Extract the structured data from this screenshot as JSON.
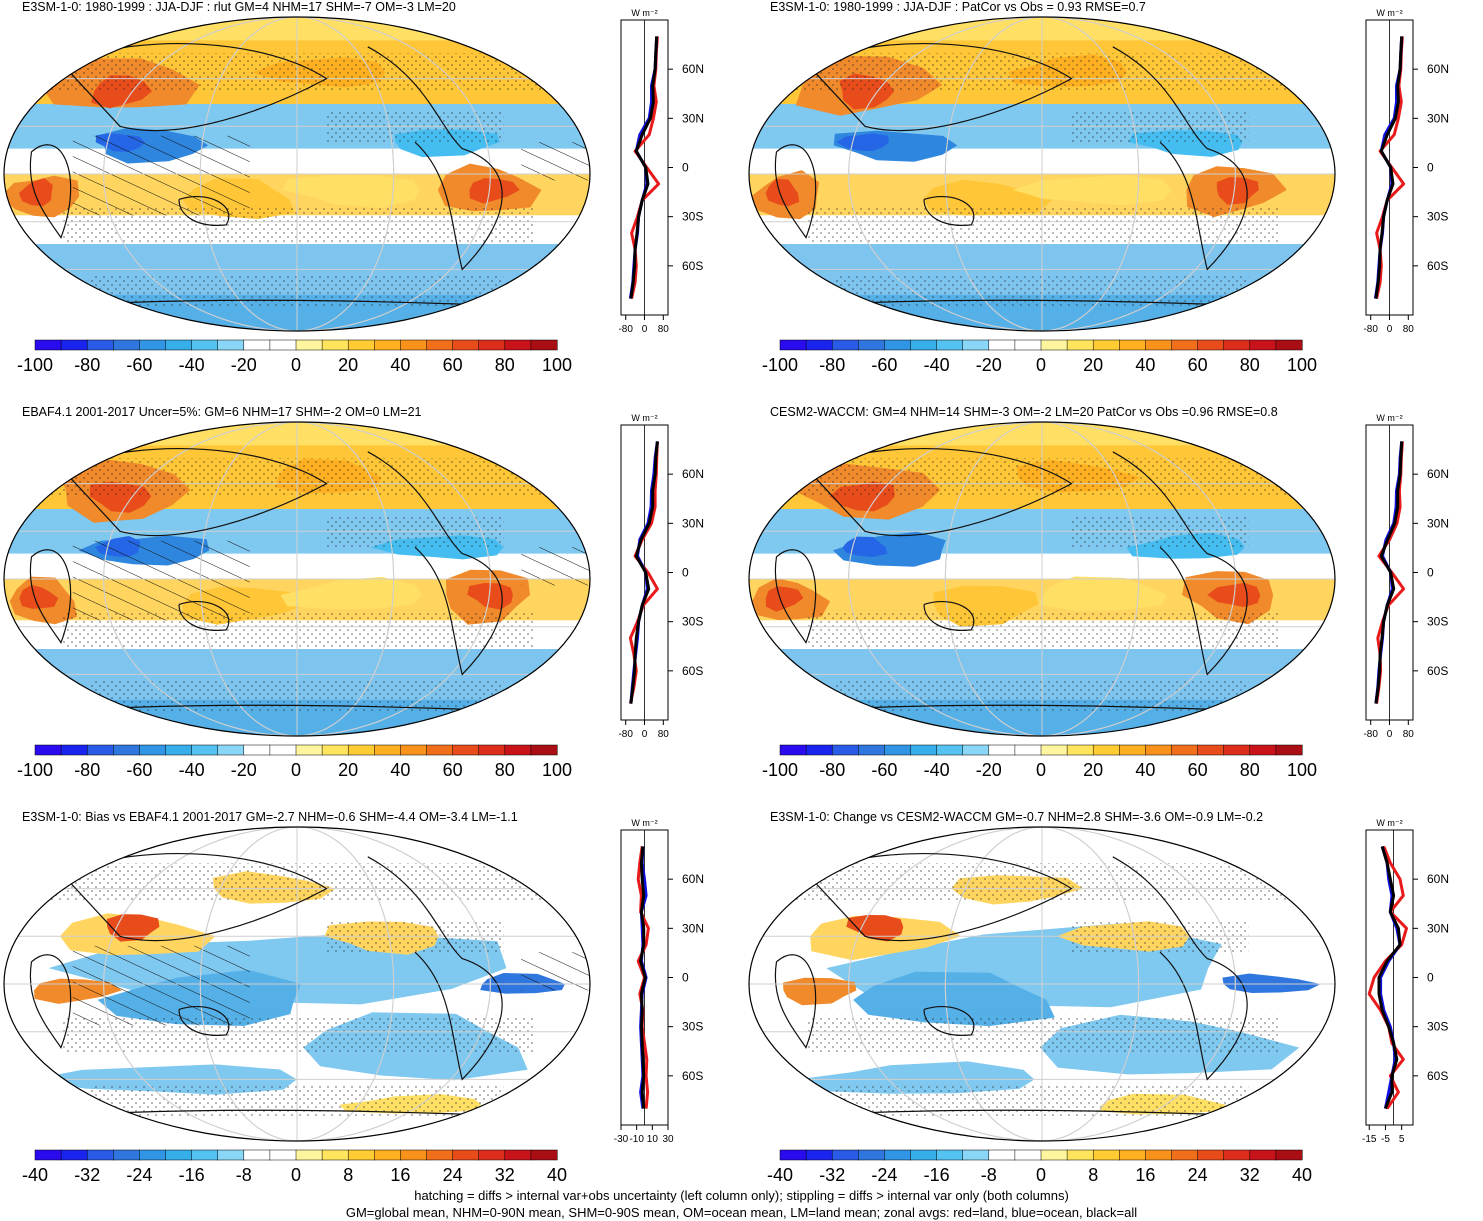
{
  "footer": {
    "line1": "hatching = diffs > internal var+obs uncertainty (left column only); stippling = diffs > internal var only (both columns)",
    "line2": "GM=global mean, NHM=0-90N mean, SHM=0-90S mean, OM=ocean mean, LM=land mean; zonal avgs: red=land, blue=ocean, black=all"
  },
  "chart_data": [
    {
      "type": "heatmap",
      "title": "E3SM-1-0: 1980-1999 : JJA-DJF : rlut GM=4 NHM=17 SHM=-7 OM=-3 LM=20",
      "colorbar": {
        "ticks": [
          "-100",
          "-80",
          "-60",
          "-40",
          "-20",
          "0",
          "20",
          "40",
          "60",
          "80",
          "100"
        ],
        "range": [
          -100,
          100
        ]
      },
      "zonal": {
        "units": "W m⁻²",
        "xticks": [
          "-80",
          "0",
          "80"
        ],
        "xlim": [
          -100,
          100
        ],
        "yticks": [
          "60N",
          "30N",
          "0",
          "30S",
          "60S"
        ],
        "lat": [
          80,
          70,
          60,
          50,
          40,
          30,
          20,
          10,
          0,
          -10,
          -20,
          -30,
          -40,
          -50,
          -60,
          -70,
          -80
        ],
        "land": [
          55,
          50,
          48,
          40,
          50,
          38,
          20,
          -40,
          10,
          60,
          -10,
          -30,
          -55,
          -40,
          -35,
          -40,
          -55
        ],
        "ocean": [
          52,
          48,
          45,
          30,
          30,
          20,
          -20,
          -35,
          5,
          10,
          -10,
          -25,
          -30,
          -40,
          -45,
          -50,
          -60
        ],
        "all": [
          52,
          48,
          45,
          35,
          38,
          25,
          -10,
          -35,
          5,
          15,
          -10,
          -25,
          -32,
          -40,
          -42,
          -48,
          -58
        ]
      }
    },
    {
      "type": "heatmap",
      "title": "E3SM-1-0: 1980-1999 : JJA-DJF : PatCor vs Obs = 0.93 RMSE=0.7",
      "colorbar": {
        "ticks": [
          "-100",
          "-80",
          "-60",
          "-40",
          "-20",
          "0",
          "20",
          "40",
          "60",
          "80",
          "100"
        ],
        "range": [
          -100,
          100
        ]
      },
      "zonal": {
        "units": "W m⁻²",
        "xticks": [
          "-80",
          "0",
          "80"
        ],
        "xlim": [
          -100,
          100
        ],
        "yticks": [
          "60N",
          "30N",
          "0",
          "30S",
          "60S"
        ],
        "lat": [
          80,
          70,
          60,
          50,
          40,
          30,
          20,
          10,
          0,
          -10,
          -20,
          -30,
          -40,
          -50,
          -60,
          -70,
          -80
        ],
        "land": [
          55,
          50,
          48,
          40,
          50,
          38,
          20,
          -40,
          10,
          60,
          -10,
          -30,
          -55,
          -40,
          -35,
          -40,
          -55
        ],
        "ocean": [
          52,
          48,
          45,
          30,
          30,
          20,
          -20,
          -35,
          5,
          10,
          -10,
          -25,
          -30,
          -40,
          -45,
          -50,
          -60
        ],
        "all": [
          52,
          48,
          45,
          35,
          38,
          25,
          -10,
          -35,
          5,
          15,
          -10,
          -25,
          -32,
          -40,
          -42,
          -48,
          -58
        ]
      }
    },
    {
      "type": "heatmap",
      "title": "EBAF4.1 2001-2017 Uncer=5%: GM=6 NHM=17 SHM=-2 OM=0 LM=21",
      "colorbar": {
        "ticks": [
          "-100",
          "-80",
          "-60",
          "-40",
          "-20",
          "0",
          "20",
          "40",
          "60",
          "80",
          "100"
        ],
        "range": [
          -100,
          100
        ]
      },
      "zonal": {
        "units": "W m⁻²",
        "xticks": [
          "-80",
          "0",
          "80"
        ],
        "xlim": [
          -100,
          100
        ],
        "yticks": [
          "60N",
          "30N",
          "0",
          "30S",
          "60S"
        ],
        "lat": [
          80,
          70,
          60,
          50,
          40,
          30,
          20,
          10,
          0,
          -10,
          -20,
          -30,
          -40,
          -50,
          -60,
          -70,
          -80
        ],
        "land": [
          55,
          52,
          50,
          45,
          45,
          30,
          -10,
          -40,
          15,
          55,
          -5,
          -30,
          -60,
          -45,
          -35,
          -45,
          -60
        ],
        "ocean": [
          55,
          45,
          40,
          30,
          28,
          15,
          -20,
          -30,
          5,
          12,
          -10,
          -25,
          -30,
          -38,
          -45,
          -52,
          -58
        ],
        "all": [
          55,
          48,
          45,
          35,
          35,
          20,
          -15,
          -35,
          5,
          18,
          -10,
          -25,
          -35,
          -40,
          -42,
          -50,
          -58
        ]
      }
    },
    {
      "type": "heatmap",
      "title": "CESM2-WACCM: GM=4 NHM=14 SHM=-3 OM=-2 LM=20 PatCor vs Obs =0.96 RMSE=0.8",
      "colorbar": {
        "ticks": [
          "-100",
          "-80",
          "-60",
          "-40",
          "-20",
          "0",
          "20",
          "40",
          "60",
          "80",
          "100"
        ],
        "range": [
          -100,
          100
        ]
      },
      "zonal": {
        "units": "W m⁻²",
        "xticks": [
          "-80",
          "0",
          "80"
        ],
        "xlim": [
          -100,
          100
        ],
        "yticks": [
          "60N",
          "30N",
          "0",
          "30S",
          "60S"
        ],
        "lat": [
          80,
          70,
          60,
          50,
          40,
          30,
          20,
          10,
          0,
          -10,
          -20,
          -30,
          -40,
          -50,
          -60,
          -70,
          -80
        ],
        "land": [
          55,
          50,
          48,
          42,
          45,
          32,
          0,
          -45,
          10,
          60,
          -5,
          -30,
          -50,
          -40,
          -38,
          -45,
          -55
        ],
        "ocean": [
          52,
          45,
          42,
          30,
          28,
          18,
          -15,
          -30,
          5,
          12,
          -10,
          -25,
          -30,
          -38,
          -45,
          -50,
          -58
        ],
        "all": [
          52,
          48,
          45,
          35,
          35,
          22,
          -8,
          -35,
          5,
          18,
          -10,
          -25,
          -32,
          -40,
          -42,
          -48,
          -58
        ]
      }
    },
    {
      "type": "heatmap",
      "title": "E3SM-1-0: Bias vs EBAF4.1 2001-2017 GM=-2.7 NHM=-0.6 SHM=-4.4 OM=-3.4 LM=-1.1",
      "colorbar": {
        "ticks": [
          "-40",
          "-32",
          "-24",
          "-16",
          "-8",
          "0",
          "8",
          "16",
          "24",
          "32",
          "40"
        ],
        "range": [
          -40,
          40
        ]
      },
      "zonal": {
        "units": "W m⁻²",
        "xticks": [
          "-30",
          "-10",
          "10",
          "30"
        ],
        "xlim": [
          -30,
          30
        ],
        "yticks": [
          "60N",
          "30N",
          "0",
          "30S",
          "60S"
        ],
        "lat": [
          80,
          70,
          60,
          50,
          40,
          30,
          20,
          10,
          0,
          -10,
          -20,
          -30,
          -40,
          -50,
          -60,
          -70,
          -80
        ],
        "land": [
          -3,
          -6,
          -8,
          -4,
          -5,
          5,
          2,
          -8,
          0,
          -6,
          -2,
          -3,
          0,
          3,
          2,
          4,
          2
        ],
        "ocean": [
          -2,
          -3,
          0,
          2,
          -4,
          -3,
          -2,
          -4,
          2,
          -3,
          -4,
          -5,
          -4,
          -3,
          -2,
          -5,
          -2
        ],
        "all": [
          -2,
          -4,
          -3,
          -1,
          -4,
          -1,
          -1,
          -5,
          1,
          -4,
          -3,
          -4,
          -3,
          -2,
          -1,
          -3,
          -1
        ]
      }
    },
    {
      "type": "heatmap",
      "title": "E3SM-1-0: Change vs CESM2-WACCM GM=-0.7 NHM=2.8 SHM=-3.6 OM=-0.9 LM=-0.2",
      "colorbar": {
        "ticks": [
          "-40",
          "-32",
          "-24",
          "-16",
          "-8",
          "0",
          "8",
          "16",
          "24",
          "32",
          "40"
        ],
        "range": [
          -40,
          40
        ]
      },
      "zonal": {
        "units": "W m⁻²",
        "xticks": [
          "-15",
          "-5",
          "5"
        ],
        "xlim": [
          -17,
          12
        ],
        "yticks": [
          "60N",
          "30N",
          "0",
          "30S",
          "60S"
        ],
        "lat": [
          80,
          70,
          60,
          50,
          40,
          30,
          20,
          10,
          0,
          -10,
          -20,
          -30,
          -40,
          -50,
          -60,
          -70,
          -80
        ],
        "land": [
          -6,
          -2,
          4,
          6,
          -2,
          8,
          5,
          -5,
          -12,
          -15,
          -8,
          -3,
          -1,
          6,
          -2,
          3,
          -4
        ],
        "ocean": [
          -7,
          -4,
          -3,
          -1,
          -2,
          2,
          4,
          -3,
          -8,
          -8,
          -6,
          -2,
          0,
          1,
          -1,
          -3,
          -5
        ],
        "all": [
          -7,
          -4,
          -2,
          0,
          -2,
          3,
          4,
          -4,
          -9,
          -9,
          -7,
          -3,
          0,
          2,
          -1,
          -1,
          -5
        ]
      }
    }
  ]
}
